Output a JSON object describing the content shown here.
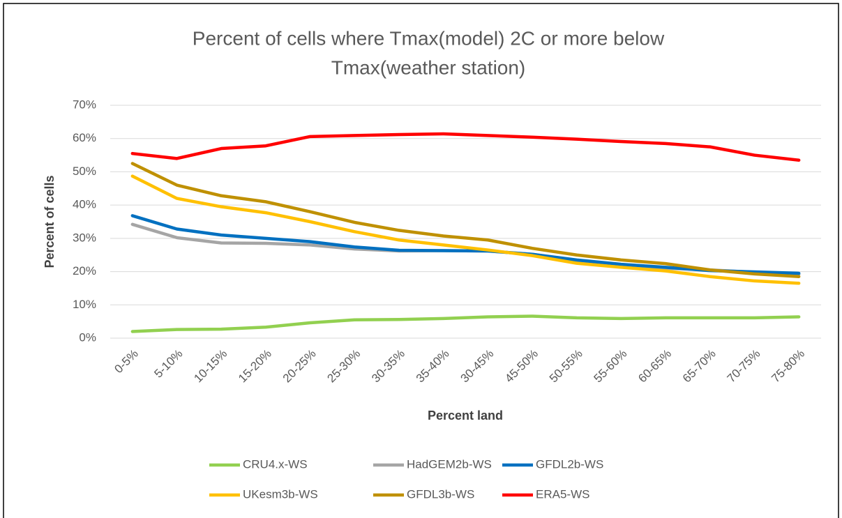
{
  "chart_data": {
    "type": "line",
    "title": [
      "Percent of cells where Tmax(model) 2C or more below",
      "Tmax(weather station)"
    ],
    "x_label": "Percent land",
    "y_label": "Percent of cells",
    "categories": [
      "0-5%",
      "5-10%",
      "10-15%",
      "15-20%",
      "20-25%",
      "25-30%",
      "30-35%",
      "35-40%",
      "30-45%",
      "45-50%",
      "50-55%",
      "55-60%",
      "60-65%",
      "65-70%",
      "70-75%",
      "75-80%"
    ],
    "series": [
      {
        "name": "CRU4.x-WS",
        "color": "#92d050",
        "values": [
          2,
          2.6,
          2.7,
          3.3,
          4.6,
          5.5,
          5.6,
          5.9,
          6.4,
          6.6,
          6.1,
          5.9,
          6.1,
          6.1,
          6.1,
          6.4
        ]
      },
      {
        "name": "HadGEM2b-WS",
        "color": "#a5a5a5",
        "values": [
          34.2,
          30.2,
          28.6,
          28.5,
          28,
          26.8,
          26.2,
          26.3,
          26.2,
          25.2,
          23.3,
          22,
          21,
          20.5,
          19.8,
          19.2
        ]
      },
      {
        "name": "GFDL2b-WS",
        "color": "#0070c0",
        "values": [
          36.8,
          32.8,
          31,
          30,
          29,
          27.4,
          26.4,
          26.3,
          26.2,
          25.2,
          23.5,
          22.2,
          21.3,
          20.3,
          19.9,
          19.5
        ]
      },
      {
        "name": "UKesm3b-WS",
        "color": "#ffc000",
        "values": [
          48.7,
          42,
          39.5,
          37.7,
          35,
          32,
          29.5,
          28,
          26.5,
          24.8,
          22.5,
          21.3,
          20.2,
          18.5,
          17.2,
          16.5
        ]
      },
      {
        "name": "GFDL3b-WS",
        "color": "#bf9000",
        "values": [
          52.5,
          46,
          42.8,
          41,
          38,
          34.8,
          32.4,
          30.7,
          29.5,
          27,
          25,
          23.5,
          22.4,
          20.5,
          19.3,
          18.5
        ]
      },
      {
        "name": "ERA5-WS",
        "color": "#ff0000",
        "values": [
          55.5,
          54,
          57,
          57.8,
          60.6,
          60.9,
          61.2,
          61.4,
          60.9,
          60.4,
          59.8,
          59.1,
          58.5,
          57.5,
          55,
          53.5
        ]
      }
    ],
    "ylim": [
      0,
      70
    ],
    "yticks": [
      {
        "value": 0,
        "label": "0%"
      },
      {
        "value": 10,
        "label": "10%"
      },
      {
        "value": 20,
        "label": "20%"
      },
      {
        "value": 30,
        "label": "30%"
      },
      {
        "value": 40,
        "label": "40%"
      },
      {
        "value": 50,
        "label": "50%"
      },
      {
        "value": 60,
        "label": "60%"
      },
      {
        "value": 70,
        "label": "70%"
      }
    ],
    "grid": true
  }
}
